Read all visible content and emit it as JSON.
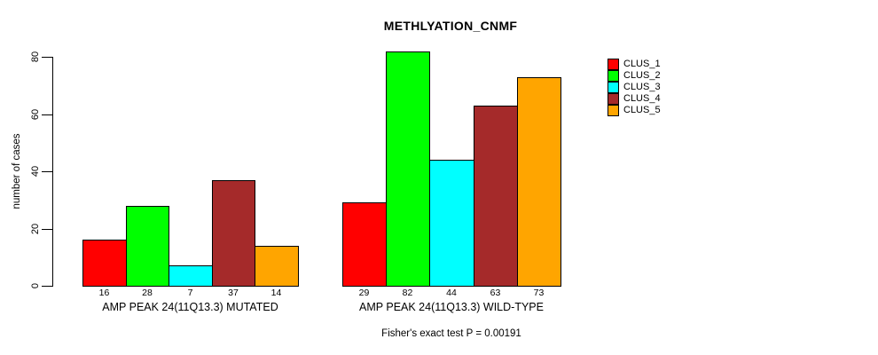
{
  "chart_data": {
    "type": "bar",
    "title": "METHLYATION_CNMF",
    "subtitle": "Fisher's exact test P = 0.00191",
    "ylabel": "number of cases",
    "xlabel": "",
    "ylim": [
      0,
      80
    ],
    "yticks": [
      0,
      20,
      40,
      60,
      80
    ],
    "grid": false,
    "legend_position": "right",
    "bar_border_color": "#000000",
    "categories": [
      "AMP PEAK 24(11Q13.3) MUTATED",
      "AMP PEAK 24(11Q13.3) WILD-TYPE"
    ],
    "series": [
      {
        "name": "CLUS_1",
        "color": "#ff0000",
        "values": [
          16,
          29
        ]
      },
      {
        "name": "CLUS_2",
        "color": "#00ff00",
        "values": [
          28,
          82
        ]
      },
      {
        "name": "CLUS_3",
        "color": "#00ffff",
        "values": [
          7,
          44
        ]
      },
      {
        "name": "CLUS_4",
        "color": "#a52a2a",
        "values": [
          37,
          63
        ]
      },
      {
        "name": "CLUS_5",
        "color": "#ffa500",
        "values": [
          14,
          73
        ]
      }
    ]
  }
}
